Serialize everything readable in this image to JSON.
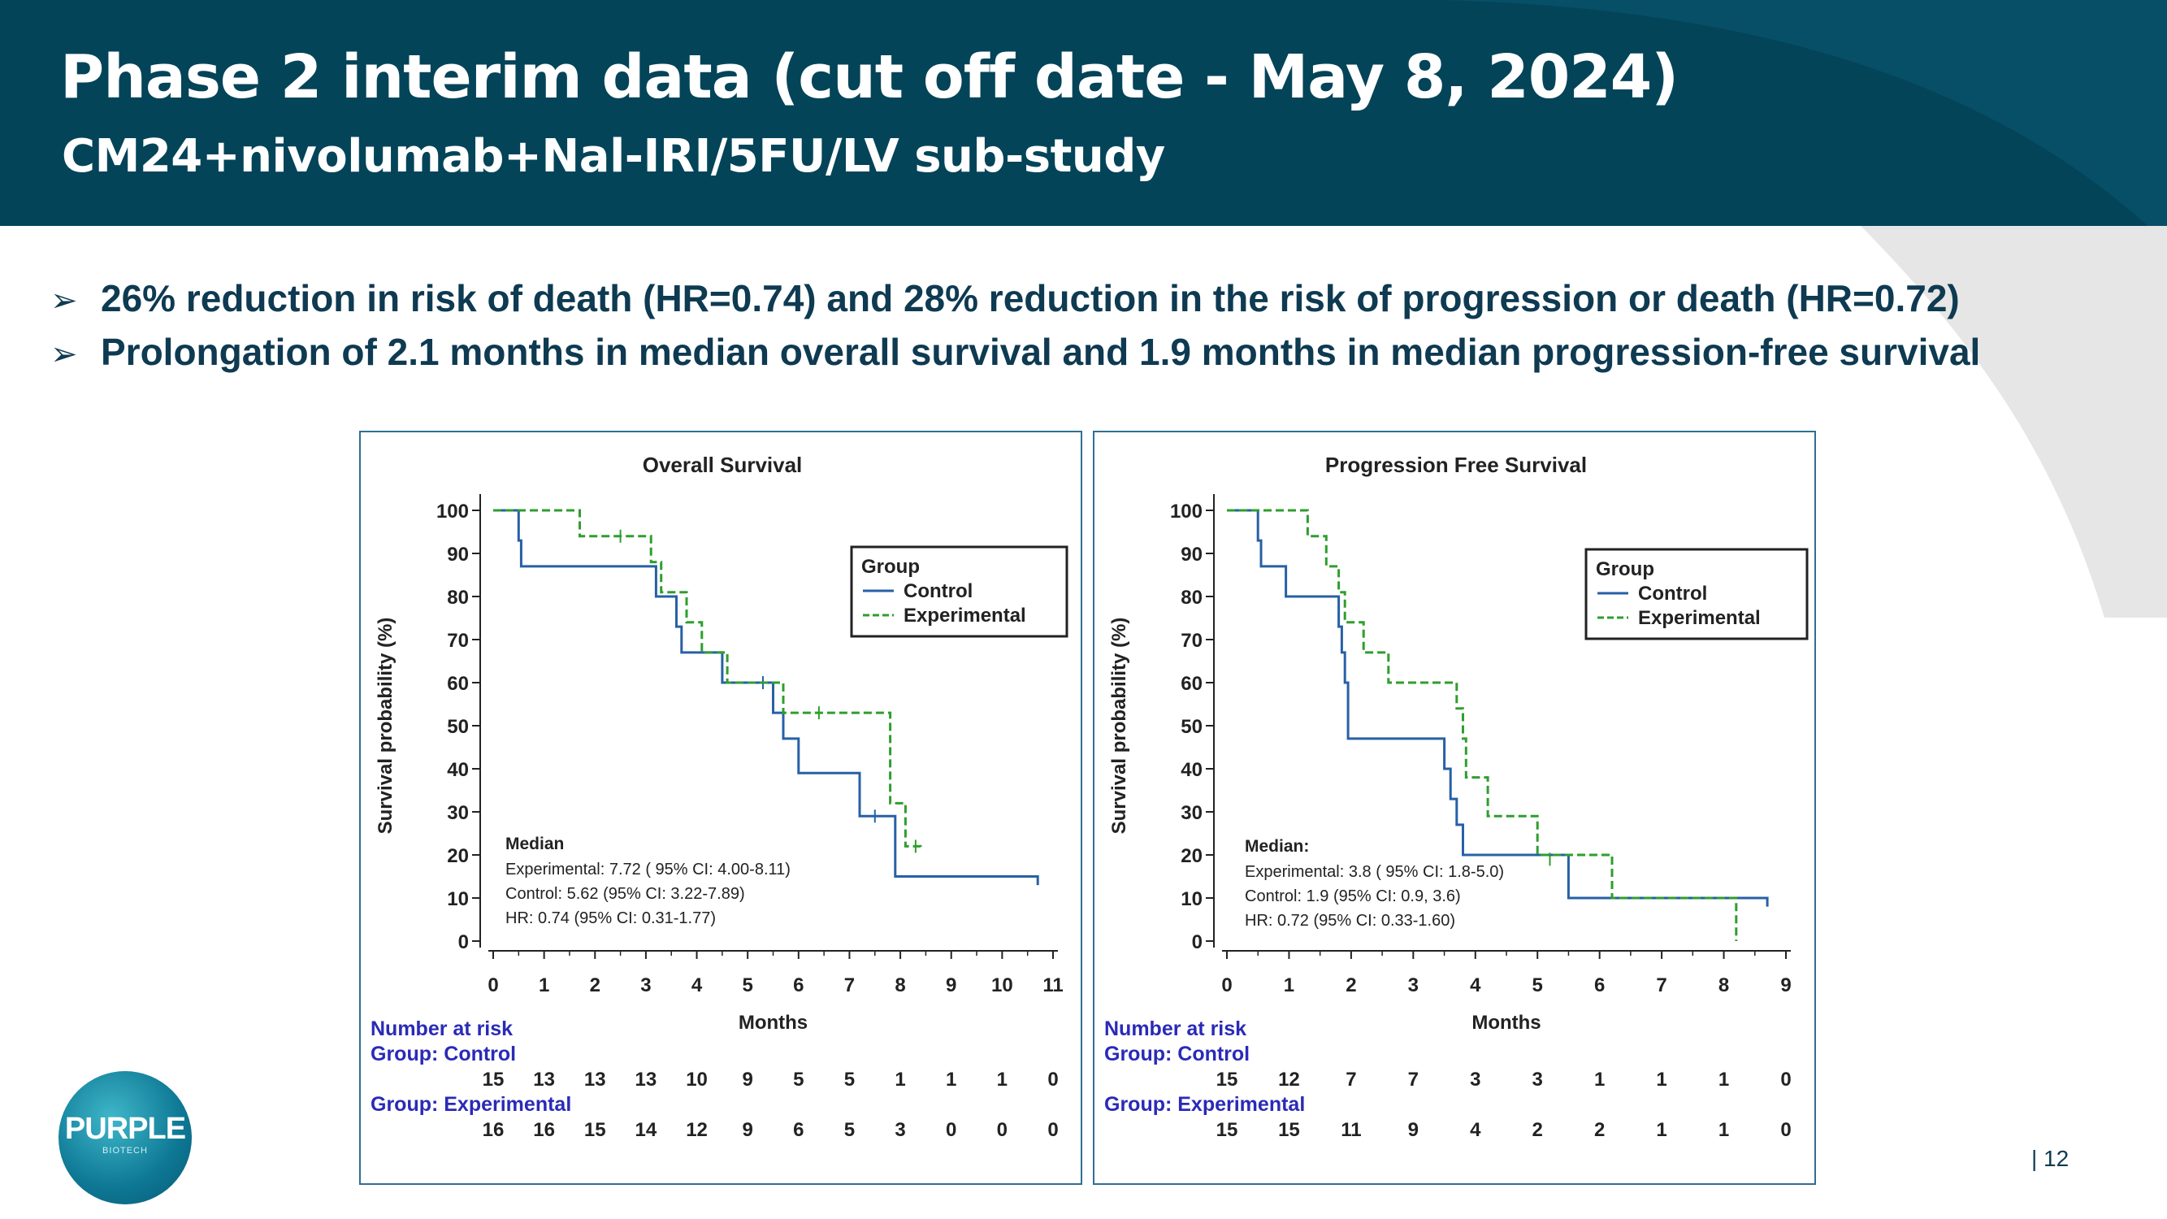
{
  "header": {
    "title": "Phase 2 interim data (cut off date - May 8, 2024)",
    "subtitle": "CM24+nivolumab+Nal-IRI/5FU/LV sub-study"
  },
  "bullets": [
    "26% reduction in risk of death (HR=0.74) and 28% reduction in the risk of progression or death (HR=0.72)",
    "Prolongation of 2.1 months in median overall survival and 1.9 months in median progression-free survival"
  ],
  "bullet_icon": "arrow-bullet-icon",
  "colors": {
    "header_bg": "#034459",
    "deco_gray": "#e6e6e6",
    "panel_border": "#2e6f93",
    "control": "#2760a6",
    "experimental": "#2e9e2e",
    "risk_label": "#2a2ab8",
    "text_dark": "#0e3a52"
  },
  "chart_data": [
    {
      "type": "line",
      "title": "Overall Survival",
      "xlabel": "Months",
      "ylabel": "Survival probability (%)",
      "xlim": [
        0,
        11
      ],
      "ylim": [
        0,
        100
      ],
      "xticks": [
        0,
        1,
        2,
        3,
        4,
        5,
        6,
        7,
        8,
        9,
        10,
        11
      ],
      "yticks": [
        0,
        10,
        20,
        30,
        40,
        50,
        60,
        70,
        80,
        90,
        100
      ],
      "legend": {
        "title": "Group",
        "position": "top-right",
        "entries": [
          "Control",
          "Experimental"
        ]
      },
      "series": [
        {
          "name": "Control",
          "style": "solid",
          "steps": [
            [
              0,
              100
            ],
            [
              0.5,
              100
            ],
            [
              0.5,
              93
            ],
            [
              0.55,
              93
            ],
            [
              0.55,
              87
            ],
            [
              3.2,
              87
            ],
            [
              3.2,
              80
            ],
            [
              3.6,
              80
            ],
            [
              3.6,
              73
            ],
            [
              3.7,
              73
            ],
            [
              3.7,
              67
            ],
            [
              4.5,
              67
            ],
            [
              4.5,
              60
            ],
            [
              5.5,
              60
            ],
            [
              5.5,
              53
            ],
            [
              5.7,
              53
            ],
            [
              5.7,
              47
            ],
            [
              6.0,
              47
            ],
            [
              6.0,
              39
            ],
            [
              7.2,
              39
            ],
            [
              7.2,
              29
            ],
            [
              7.9,
              29
            ],
            [
              7.9,
              15
            ],
            [
              10.7,
              15
            ],
            [
              10.7,
              13
            ]
          ],
          "censor_marks": [
            [
              5.3,
              60
            ],
            [
              7.5,
              29
            ]
          ]
        },
        {
          "name": "Experimental",
          "style": "dashed",
          "steps": [
            [
              0,
              100
            ],
            [
              1.7,
              100
            ],
            [
              1.7,
              94
            ],
            [
              3.1,
              94
            ],
            [
              3.1,
              88
            ],
            [
              3.3,
              88
            ],
            [
              3.3,
              81
            ],
            [
              3.8,
              81
            ],
            [
              3.8,
              74
            ],
            [
              4.1,
              74
            ],
            [
              4.1,
              67
            ],
            [
              4.6,
              67
            ],
            [
              4.6,
              60
            ],
            [
              5.7,
              60
            ],
            [
              5.7,
              53
            ],
            [
              7.8,
              53
            ],
            [
              7.8,
              32
            ],
            [
              8.1,
              32
            ],
            [
              8.1,
              22
            ],
            [
              8.4,
              22
            ],
            [
              8.4,
              21
            ]
          ],
          "censor_marks": [
            [
              2.5,
              94
            ],
            [
              6.4,
              53
            ],
            [
              8.3,
              22
            ]
          ]
        }
      ],
      "median_box": {
        "heading": "Median",
        "lines": [
          "Experimental: 7.72 ( 95% CI: 4.00-8.11)",
          "Control:            5.62 (95% CI: 3.22-7.89)",
          "HR:   0.74 (95% CI: 0.31-1.77)"
        ]
      },
      "risk_table": {
        "heading": "Number at risk",
        "groups": [
          {
            "label": "Group: Control",
            "values": [
              15,
              13,
              13,
              13,
              10,
              9,
              5,
              5,
              1,
              1,
              1,
              0
            ]
          },
          {
            "label": "Group: Experimental",
            "values": [
              16,
              16,
              15,
              14,
              12,
              9,
              6,
              5,
              3,
              0,
              0,
              0
            ]
          }
        ]
      }
    },
    {
      "type": "line",
      "title": "Progression Free Survival",
      "xlabel": "Months",
      "ylabel": "Survival probability (%)",
      "xlim": [
        0,
        9
      ],
      "ylim": [
        0,
        100
      ],
      "xticks": [
        0,
        1,
        2,
        3,
        4,
        5,
        6,
        7,
        8,
        9
      ],
      "yticks": [
        0,
        10,
        20,
        30,
        40,
        50,
        60,
        70,
        80,
        90,
        100
      ],
      "legend": {
        "title": "Group",
        "position": "top-right",
        "entries": [
          "Control",
          "Experimental"
        ]
      },
      "series": [
        {
          "name": "Control",
          "style": "solid",
          "steps": [
            [
              0,
              100
            ],
            [
              0.5,
              100
            ],
            [
              0.5,
              93
            ],
            [
              0.55,
              93
            ],
            [
              0.55,
              87
            ],
            [
              0.95,
              87
            ],
            [
              0.95,
              80
            ],
            [
              1.8,
              80
            ],
            [
              1.8,
              73
            ],
            [
              1.85,
              73
            ],
            [
              1.85,
              67
            ],
            [
              1.9,
              67
            ],
            [
              1.9,
              60
            ],
            [
              1.95,
              60
            ],
            [
              1.95,
              47
            ],
            [
              3.5,
              47
            ],
            [
              3.5,
              40
            ],
            [
              3.6,
              40
            ],
            [
              3.6,
              33
            ],
            [
              3.7,
              33
            ],
            [
              3.7,
              27
            ],
            [
              3.8,
              27
            ],
            [
              3.8,
              20
            ],
            [
              5.5,
              20
            ],
            [
              5.5,
              10
            ],
            [
              8.7,
              10
            ],
            [
              8.7,
              8
            ]
          ],
          "censor_marks": []
        },
        {
          "name": "Experimental",
          "style": "dashed",
          "steps": [
            [
              0,
              100
            ],
            [
              1.3,
              100
            ],
            [
              1.3,
              94
            ],
            [
              1.6,
              94
            ],
            [
              1.6,
              87
            ],
            [
              1.8,
              87
            ],
            [
              1.8,
              81
            ],
            [
              1.9,
              81
            ],
            [
              1.9,
              74
            ],
            [
              2.2,
              74
            ],
            [
              2.2,
              67
            ],
            [
              2.6,
              67
            ],
            [
              2.6,
              60
            ],
            [
              3.7,
              60
            ],
            [
              3.7,
              54
            ],
            [
              3.8,
              54
            ],
            [
              3.8,
              47
            ],
            [
              3.85,
              47
            ],
            [
              3.85,
              38
            ],
            [
              4.2,
              38
            ],
            [
              4.2,
              29
            ],
            [
              5.0,
              29
            ],
            [
              5.0,
              20
            ],
            [
              6.2,
              20
            ],
            [
              6.2,
              10
            ],
            [
              8.2,
              10
            ],
            [
              8.2,
              0
            ]
          ],
          "censor_marks": [
            [
              5.2,
              19
            ]
          ]
        }
      ],
      "median_box": {
        "heading": "Median:",
        "lines": [
          "Experimental: 3.8 ( 95% CI: 1.8-5.0)",
          "Control:            1.9 (95% CI: 0.9, 3.6)",
          "HR: 0.72 (95% CI: 0.33-1.60)"
        ]
      },
      "risk_table": {
        "heading": "Number at risk",
        "groups": [
          {
            "label": "Group: Control",
            "values": [
              15,
              12,
              7,
              7,
              3,
              3,
              1,
              1,
              1,
              0
            ]
          },
          {
            "label": "Group: Experimental",
            "values": [
              15,
              15,
              11,
              9,
              4,
              2,
              2,
              1,
              1,
              0
            ]
          }
        ]
      }
    }
  ],
  "logo": {
    "text": "PURPLE",
    "subtext": "BIOTECH"
  },
  "page_number": "| 12"
}
